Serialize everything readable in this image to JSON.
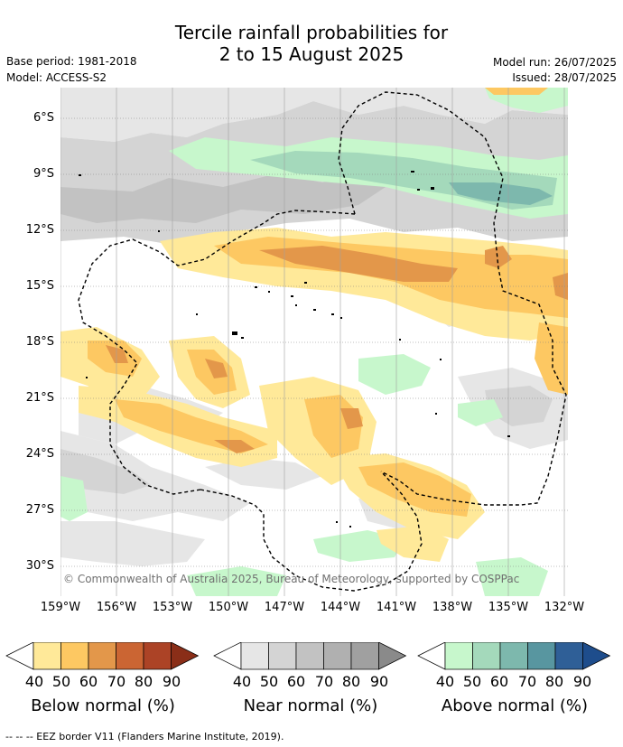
{
  "header": {
    "title_line1": "Tercile rainfall probabilities for",
    "title_line2": "2 to 15 August 2025",
    "base_period": "Base period: 1981-2018",
    "model": "Model: ACCESS-S2",
    "model_run": "Model run: 26/07/2025",
    "issued": "Issued: 28/07/2025"
  },
  "map": {
    "lat_labels": [
      "6°S",
      "9°S",
      "12°S",
      "15°S",
      "18°S",
      "21°S",
      "24°S",
      "27°S",
      "30°S"
    ],
    "lon_labels": [
      "159°W",
      "156°W",
      "153°W",
      "150°W",
      "147°W",
      "144°W",
      "141°W",
      "138°W",
      "135°W",
      "132°W"
    ],
    "copyright": "© Commonwealth of Australia 2025, Bureau of Meteorology, supported by COSPPac",
    "boundary_style": "dashed EEZ border"
  },
  "legends": [
    {
      "title": "Below normal (%)",
      "ticks": [
        "40",
        "50",
        "60",
        "70",
        "80",
        "90"
      ],
      "colors": [
        "#ffffff",
        "#ffe999",
        "#fdc862",
        "#e3974a",
        "#cb6533",
        "#ac4326",
        "#8a2e18"
      ]
    },
    {
      "title": "Near normal (%)",
      "ticks": [
        "40",
        "50",
        "60",
        "70",
        "80",
        "90"
      ],
      "colors": [
        "#ffffff",
        "#e6e6e6",
        "#d4d4d4",
        "#c2c2c2",
        "#b0b0b0",
        "#a0a0a0",
        "#8a8a8a"
      ]
    },
    {
      "title": "Above normal (%)",
      "ticks": [
        "40",
        "50",
        "60",
        "70",
        "80",
        "90"
      ],
      "colors": [
        "#ffffff",
        "#c7f7cc",
        "#a4d9bb",
        "#7db8ad",
        "#5896a0",
        "#2f5f97",
        "#1e4d8c"
      ]
    }
  ],
  "footnote": "--  --  -- EEZ border V11 (Flanders Marine Institute, 2019)."
}
